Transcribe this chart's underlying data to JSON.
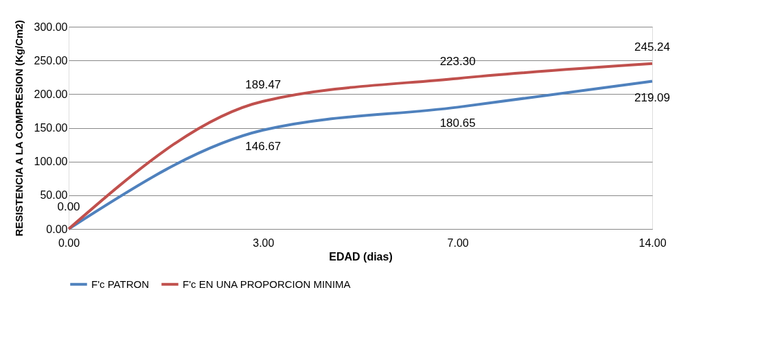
{
  "chart_data": {
    "type": "line",
    "xlabel": "EDAD (dias)",
    "ylabel": "RESISTENCIA  A LA COMPRESION (Kg/Cm2)",
    "categories": [
      "0.00",
      "3.00",
      "7.00",
      "14.00"
    ],
    "series": [
      {
        "name": "F'c PATRON",
        "color": "#4f81bd",
        "values": [
          0.0,
          146.67,
          180.65,
          219.09
        ],
        "value_labels": [
          "0.00",
          "146.67",
          "180.65",
          "219.09"
        ]
      },
      {
        "name": "F'c EN UNA PROPORCION MINIMA",
        "color": "#c0504d",
        "values": [
          0.0,
          189.47,
          223.3,
          245.24
        ],
        "value_labels": [
          null,
          "189.47",
          "223.30",
          "245.24"
        ]
      }
    ],
    "ylim": [
      0,
      300
    ],
    "yticks": [
      {
        "value": 0,
        "label": "0.00"
      },
      {
        "value": 50,
        "label": "50.00"
      },
      {
        "value": 100,
        "label": "100.00"
      },
      {
        "value": 150,
        "label": "150.00"
      },
      {
        "value": 200,
        "label": "200.00"
      },
      {
        "value": 250,
        "label": "250.00"
      },
      {
        "value": 300,
        "label": "300.00"
      }
    ],
    "grid": "y",
    "legend": "bottom"
  }
}
